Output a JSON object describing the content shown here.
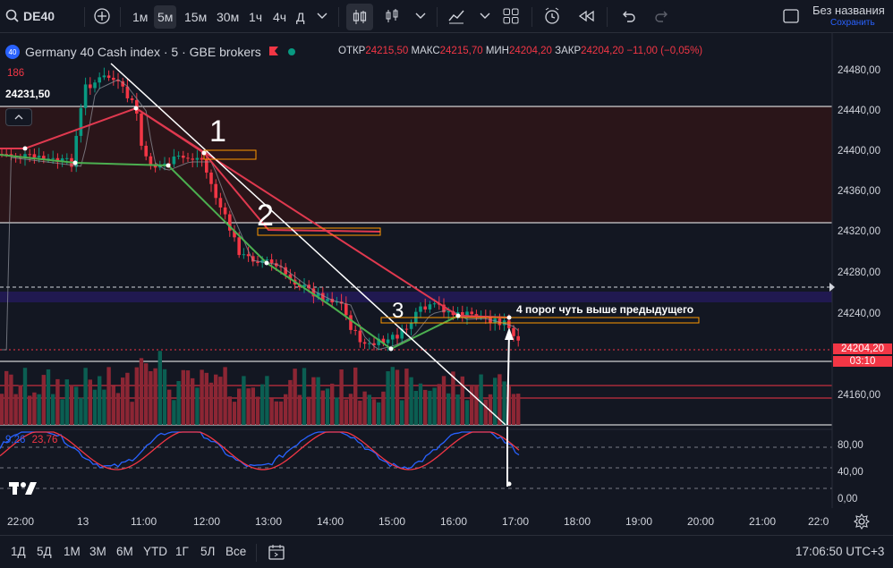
{
  "toolbar": {
    "symbol": "DE40",
    "timeframes": [
      "1м",
      "5м",
      "15м",
      "30м",
      "1ч",
      "4ч",
      "Д"
    ],
    "active_timeframe": "5м",
    "layout_name": "Без названия",
    "save_status": "Сохранить"
  },
  "legend": {
    "logo_text": "40",
    "title": "Germany 40 Cash index · 5 · GBE brokers",
    "open_label": "ОТКР",
    "open": "24215,50",
    "high_label": "МАКС",
    "high": "24215,70",
    "low_label": "МИН",
    "low": "24204,20",
    "close_label": "ЗАКР",
    "close": "24204,20",
    "change": "−11,00 (−0,05%)",
    "volume_value": "186",
    "price_label": "24231,50"
  },
  "price_axis": {
    "ticks": [
      "24480,00",
      "24440,00",
      "24400,00",
      "24360,00",
      "24320,00",
      "24280,00",
      "24240,00",
      "24160,00"
    ],
    "current_price": "24204,20",
    "countdown": "03:10",
    "oscillator_ticks": [
      "80,00",
      "40,00",
      "0,00"
    ]
  },
  "oscillator": {
    "k_value": "9,26",
    "d_value": "23,76"
  },
  "time_axis": {
    "ticks": [
      "22:00",
      "13",
      "11:00",
      "12:00",
      "13:00",
      "14:00",
      "15:00",
      "16:00",
      "17:00",
      "18:00",
      "19:00",
      "20:00",
      "21:00",
      "22:0"
    ]
  },
  "annotations": {
    "n1": "1",
    "n2": "2",
    "n3": "3",
    "note": "4 порог чуть выше предыдущего"
  },
  "bottom_bar": {
    "ranges": [
      "1Д",
      "5Д",
      "1М",
      "3М",
      "6М",
      "YTD",
      "1Г",
      "5Л",
      "Все"
    ],
    "clock": "17:06:50 UTC+3"
  },
  "colors": {
    "bg": "#131722",
    "up": "#089981",
    "down": "#f23645",
    "zone": "#2a1519",
    "white_line": "#ffffff",
    "green_line": "#4caf50",
    "red_line": "#e0394f",
    "stoch_k": "#2962ff",
    "stoch_d": "#f23645",
    "orange": "#ff9800"
  }
}
